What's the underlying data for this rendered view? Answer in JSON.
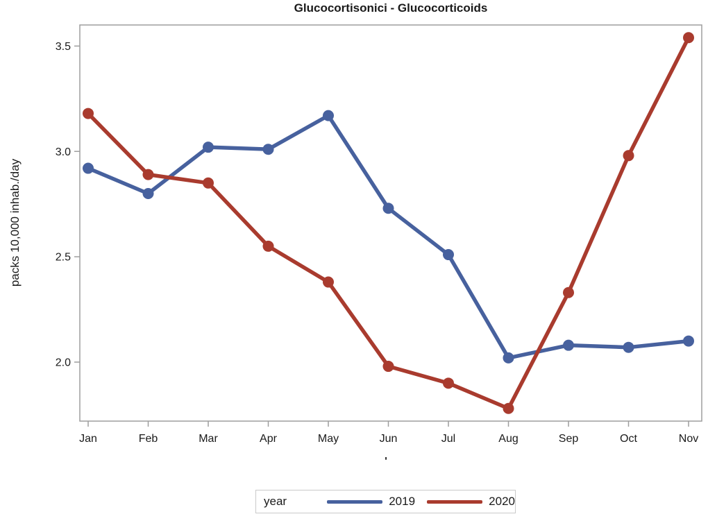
{
  "title": "Glucocortisonici - Glucocorticoids",
  "colors": {
    "series_2019": "#47619E",
    "series_2020": "#A93B2E",
    "axis": "#9E9E9E",
    "text": "#1A1A1A",
    "legend_border": "#C9C9C9"
  },
  "legend": {
    "title": "year",
    "entries": [
      "2019",
      "2020"
    ]
  },
  "chart_data": {
    "type": "line",
    "title": "Glucocortisonici - Glucocorticoids",
    "ylabel": "packs 10,000 inhab./day",
    "xlabel": "'",
    "categories": [
      "Jan",
      "Feb",
      "Mar",
      "Apr",
      "May",
      "Jun",
      "Jul",
      "Aug",
      "Sep",
      "Oct",
      "Nov"
    ],
    "y_ticks": [
      2.0,
      2.5,
      3.0,
      3.5
    ],
    "ylim": [
      1.72,
      3.6
    ],
    "grid": false,
    "legend_position": "bottom",
    "legend_title": "year",
    "series": [
      {
        "name": "2019",
        "color": "#47619E",
        "values": [
          2.92,
          2.8,
          3.02,
          3.01,
          3.17,
          2.73,
          2.51,
          2.02,
          2.08,
          2.07,
          2.1
        ]
      },
      {
        "name": "2020",
        "color": "#A93B2E",
        "values": [
          3.18,
          2.89,
          2.85,
          2.55,
          2.38,
          1.98,
          1.9,
          1.78,
          2.33,
          2.98,
          3.54
        ]
      }
    ]
  }
}
